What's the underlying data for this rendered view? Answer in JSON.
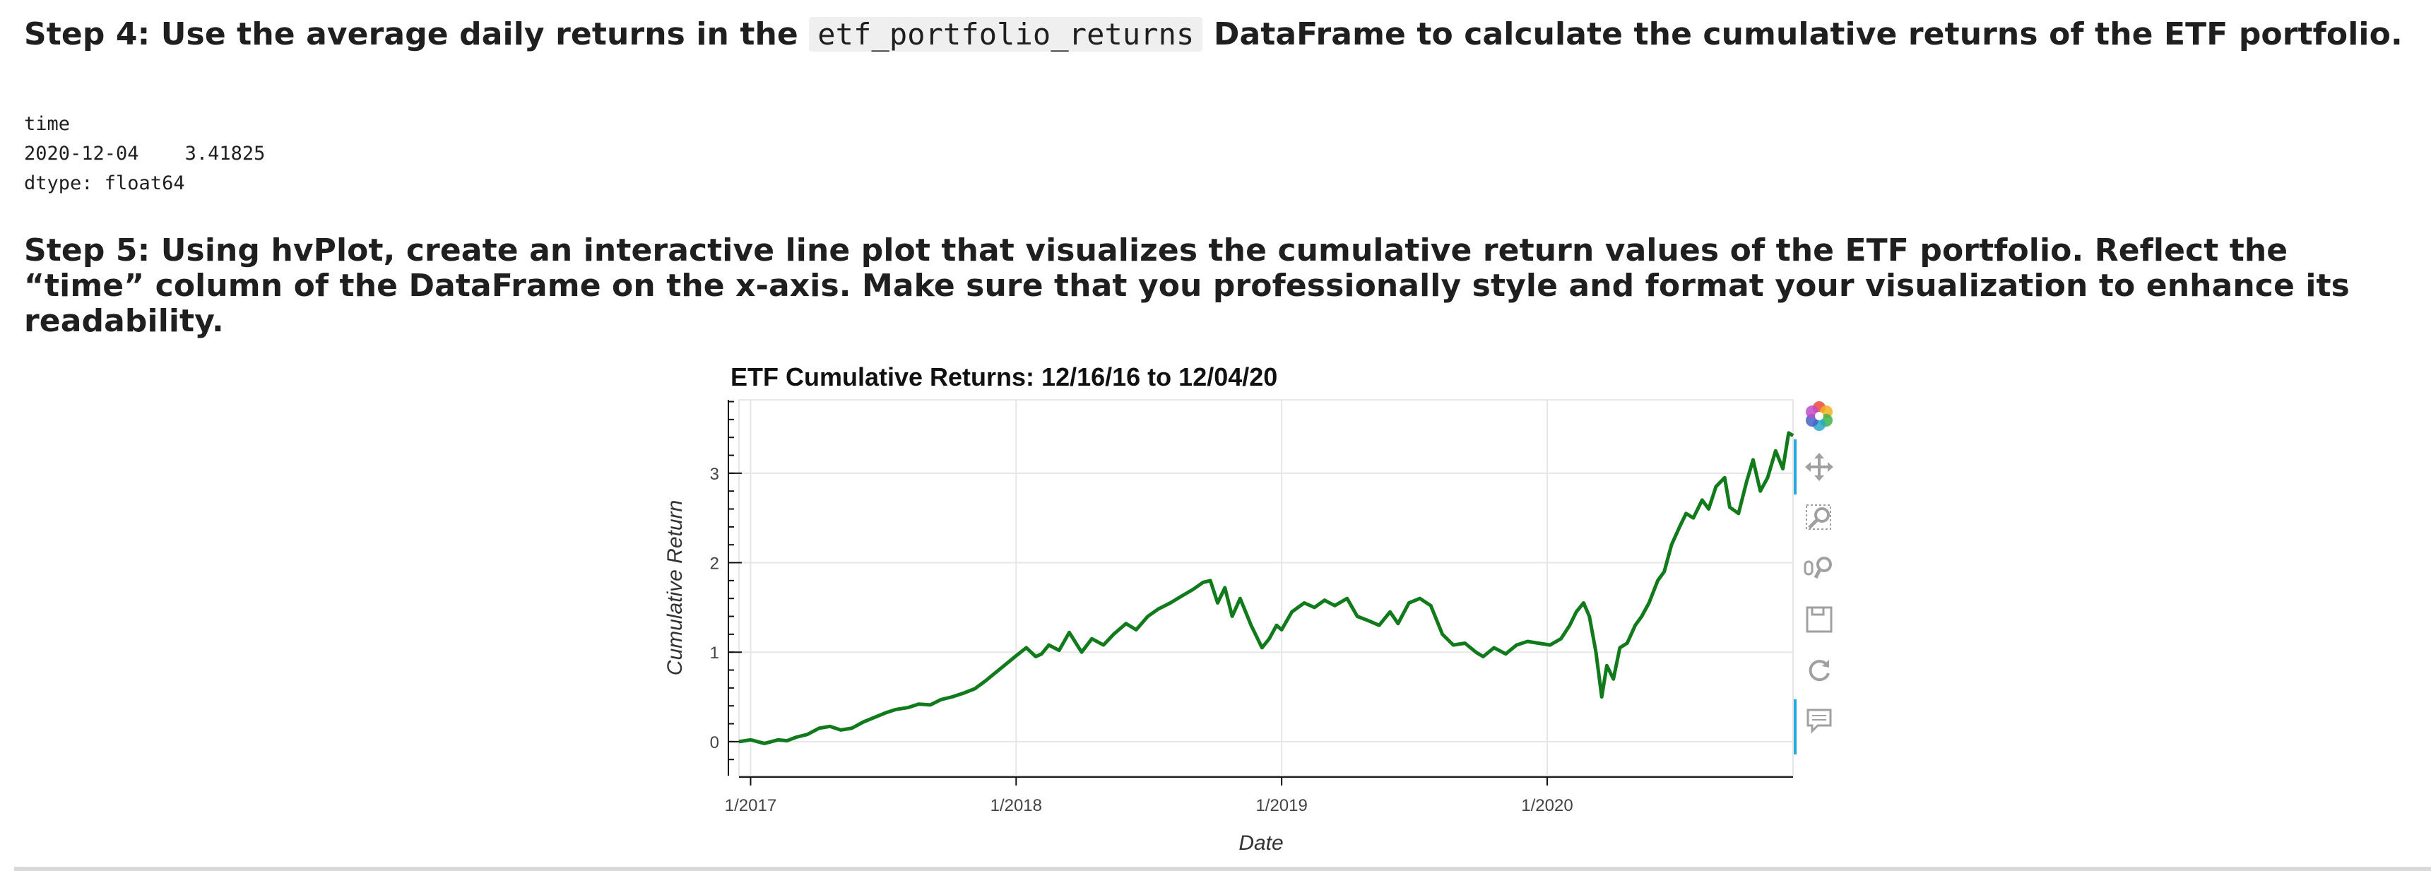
{
  "step4": {
    "before": "Step 4: Use the average daily returns in the ",
    "code": "etf_portfolio_returns",
    "after": " DataFrame to calculate the cumulative returns of the ETF portfolio."
  },
  "output": {
    "line1": "time",
    "line2": "2020-12-04    3.41825",
    "line3": "dtype: float64"
  },
  "step5": {
    "text": "Step 5: Using hvPlot, create an interactive line plot that visualizes the cumulative return values of the ETF portfolio. Reflect the “time” column of the DataFrame on the x-axis. Make sure that you professionally style and format your visualization to enhance its readability."
  },
  "toolbar": {
    "icons": [
      "bokeh-logo-icon",
      "pan-icon",
      "box-zoom-icon",
      "wheel-zoom-icon",
      "save-icon",
      "reset-icon",
      "hover-icon"
    ]
  },
  "chart_data": {
    "type": "line",
    "title": "ETF Cumulative Returns: 12/16/16 to 12/04/20",
    "xlabel": "Date",
    "ylabel": "Cumulative Return",
    "x_ticks": [
      "1/2017",
      "1/2018",
      "1/2019",
      "1/2020"
    ],
    "y_ticks": [
      "0",
      "1",
      "2",
      "3"
    ],
    "xlim": [
      "2016-12-16",
      "2020-12-04"
    ],
    "ylim": [
      -0.38,
      3.82
    ],
    "grid": true,
    "line_color": "#117b1c",
    "series": [
      {
        "x": [
          "2016-12-16",
          "2017-01-01",
          "2017-01-20",
          "2017-02-08",
          "2017-02-20",
          "2017-03-05",
          "2017-03-20",
          "2017-04-05",
          "2017-04-20",
          "2017-05-05",
          "2017-05-20",
          "2017-06-05",
          "2017-06-20",
          "2017-07-05",
          "2017-07-20",
          "2017-08-05",
          "2017-08-20",
          "2017-09-05",
          "2017-09-20",
          "2017-10-05",
          "2017-10-20",
          "2017-11-05",
          "2017-11-20",
          "2017-12-05",
          "2017-12-20",
          "2018-01-01",
          "2018-01-15",
          "2018-01-28",
          "2018-02-05",
          "2018-02-15",
          "2018-03-01",
          "2018-03-15",
          "2018-04-01",
          "2018-04-15",
          "2018-05-01",
          "2018-05-15",
          "2018-06-01",
          "2018-06-15",
          "2018-07-01",
          "2018-07-15",
          "2018-08-01",
          "2018-08-15",
          "2018-09-01",
          "2018-09-15",
          "2018-09-25",
          "2018-10-05",
          "2018-10-15",
          "2018-10-25",
          "2018-11-05",
          "2018-11-20",
          "2018-12-05",
          "2018-12-15",
          "2018-12-25",
          "2019-01-01",
          "2019-01-15",
          "2019-02-01",
          "2019-02-15",
          "2019-03-01",
          "2019-03-15",
          "2019-04-01",
          "2019-04-15",
          "2019-05-01",
          "2019-05-15",
          "2019-05-30",
          "2019-06-10",
          "2019-06-25",
          "2019-07-10",
          "2019-07-25",
          "2019-08-10",
          "2019-08-25",
          "2019-09-10",
          "2019-09-25",
          "2019-10-05",
          "2019-10-20",
          "2019-11-05",
          "2019-11-20",
          "2019-12-05",
          "2019-12-20",
          "2020-01-05",
          "2020-01-20",
          "2020-02-01",
          "2020-02-10",
          "2020-02-20",
          "2020-02-28",
          "2020-03-08",
          "2020-03-16",
          "2020-03-23",
          "2020-04-01",
          "2020-04-10",
          "2020-04-20",
          "2020-05-01",
          "2020-05-10",
          "2020-05-20",
          "2020-06-01",
          "2020-06-10",
          "2020-06-20",
          "2020-07-01",
          "2020-07-10",
          "2020-07-20",
          "2020-08-01",
          "2020-08-10",
          "2020-08-20",
          "2020-09-01",
          "2020-09-08",
          "2020-09-20",
          "2020-10-01",
          "2020-10-10",
          "2020-10-20",
          "2020-10-30",
          "2020-11-10",
          "2020-11-20",
          "2020-11-28",
          "2020-12-04"
        ],
        "y": [
          0.0,
          0.02,
          -0.02,
          0.02,
          0.01,
          0.05,
          0.08,
          0.15,
          0.17,
          0.13,
          0.15,
          0.22,
          0.27,
          0.32,
          0.36,
          0.38,
          0.42,
          0.41,
          0.47,
          0.5,
          0.54,
          0.59,
          0.68,
          0.78,
          0.88,
          0.96,
          1.05,
          0.95,
          0.98,
          1.08,
          1.02,
          1.22,
          1.0,
          1.15,
          1.08,
          1.2,
          1.32,
          1.25,
          1.4,
          1.48,
          1.55,
          1.62,
          1.7,
          1.78,
          1.8,
          1.55,
          1.72,
          1.4,
          1.6,
          1.3,
          1.05,
          1.15,
          1.3,
          1.25,
          1.45,
          1.55,
          1.5,
          1.58,
          1.52,
          1.6,
          1.4,
          1.35,
          1.3,
          1.45,
          1.32,
          1.55,
          1.6,
          1.52,
          1.2,
          1.08,
          1.1,
          1.0,
          0.95,
          1.05,
          0.98,
          1.08,
          1.12,
          1.1,
          1.08,
          1.15,
          1.3,
          1.45,
          1.55,
          1.4,
          1.0,
          0.5,
          0.85,
          0.7,
          1.05,
          1.1,
          1.3,
          1.4,
          1.55,
          1.8,
          1.9,
          2.2,
          2.4,
          2.55,
          2.5,
          2.7,
          2.6,
          2.85,
          2.95,
          2.62,
          2.55,
          2.9,
          3.15,
          2.8,
          2.95,
          3.25,
          3.05,
          3.45,
          3.42
        ]
      }
    ]
  }
}
